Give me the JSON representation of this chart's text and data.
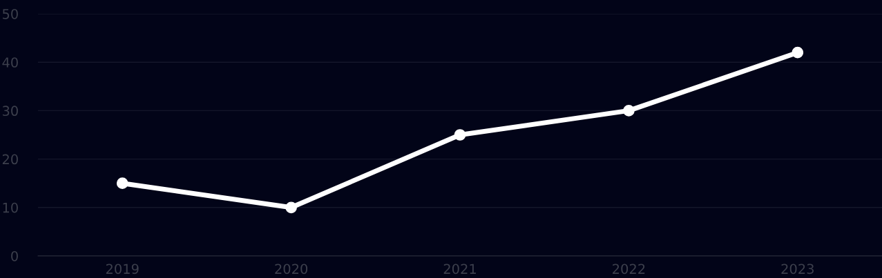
{
  "chart_data": {
    "type": "line",
    "categories": [
      "2019",
      "2020",
      "2021",
      "2022",
      "2023"
    ],
    "series": [
      {
        "color": "#ffffff",
        "values": [
          15,
          10,
          25,
          30,
          42
        ]
      }
    ],
    "ylim": [
      0,
      50
    ],
    "yticks": [
      0,
      10,
      20,
      30,
      40,
      50
    ],
    "grid": "y",
    "marker": "circle",
    "line_style": "solid"
  }
}
